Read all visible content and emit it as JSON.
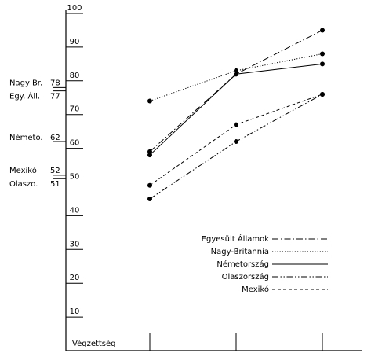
{
  "chart_data": {
    "type": "line",
    "xlabel": "Végzettség",
    "ylabel": "",
    "ylim": [
      0,
      100
    ],
    "yticks": [
      10,
      20,
      30,
      40,
      50,
      60,
      70,
      80,
      90,
      100
    ],
    "x": [
      1,
      2,
      3
    ],
    "series": [
      {
        "name": "Egyesült Államok",
        "values": [
          59,
          82,
          95
        ],
        "dash": "dashdot"
      },
      {
        "name": "Nagy-Britannia",
        "values": [
          74,
          83,
          88
        ],
        "dash": "dotted"
      },
      {
        "name": "Németország",
        "values": [
          58,
          82,
          85
        ],
        "dash": "solid"
      },
      {
        "name": "Olaszország",
        "values": [
          45,
          62,
          76
        ],
        "dash": "dashdotdot"
      },
      {
        "name": "Mexikó",
        "values": [
          49,
          67,
          76
        ],
        "dash": "dashed"
      }
    ],
    "side_markers": [
      {
        "label": "Nagy-Br.",
        "value": 78
      },
      {
        "label": "Egy. Áll.",
        "value": 77
      },
      {
        "label": "Németo.",
        "value": 62
      },
      {
        "label": "Mexikó",
        "value": 52
      },
      {
        "label": "Olaszo.",
        "value": 51
      }
    ],
    "legend_position": "bottom-right",
    "grid": false
  }
}
